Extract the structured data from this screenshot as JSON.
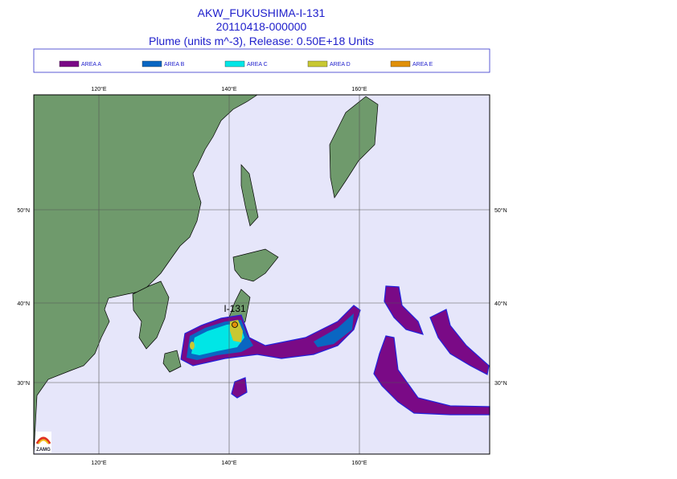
{
  "header": {
    "title": "AKW_FUKUSHIMA-I-131",
    "date": "20110418-000000",
    "subtitle": "Plume (units m^-3), Release:  0.50E+18 Units"
  },
  "legend": [
    {
      "label": "AREA A",
      "color": "#7a0a86"
    },
    {
      "label": "AREA B",
      "color": "#0a66c2"
    },
    {
      "label": "AREA C",
      "color": "#00e6e6"
    },
    {
      "label": "AREA D",
      "color": "#c8c832"
    },
    {
      "label": "AREA E",
      "color": "#e0900a"
    }
  ],
  "map": {
    "lon_labels": [
      "120°E",
      "140°E",
      "160°E"
    ],
    "lat_labels": [
      "50°N",
      "40°N",
      "30°N"
    ],
    "source_label": "I-131",
    "logo": "ZAMG"
  }
}
